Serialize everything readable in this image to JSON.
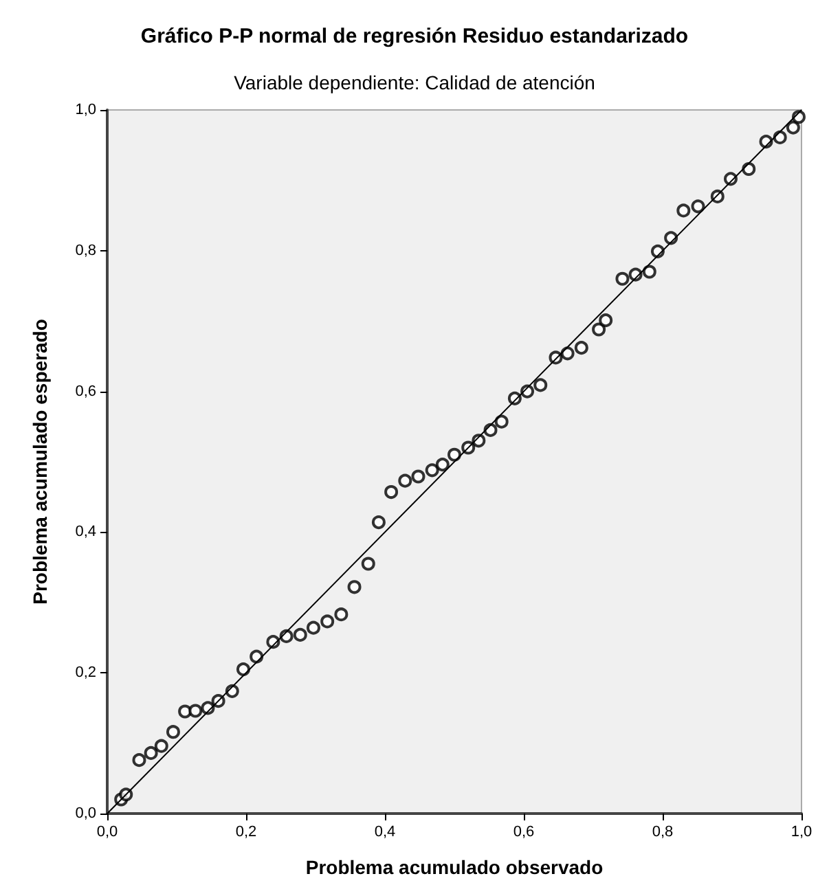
{
  "chart_data": {
    "type": "scatter",
    "title": "Gráfico P-P normal de regresión Residuo estandarizado",
    "subtitle": "Variable dependiente: Calidad de atención",
    "xlabel": "Problema acumulado observado",
    "ylabel": "Problema acumulado esperado",
    "xlim": [
      0,
      1
    ],
    "ylim": [
      0,
      1
    ],
    "xticks": [
      {
        "value": 0,
        "label": "0,0"
      },
      {
        "value": 0.2,
        "label": "0,2"
      },
      {
        "value": 0.4,
        "label": "0,4"
      },
      {
        "value": 0.6,
        "label": "0,6"
      },
      {
        "value": 0.8,
        "label": "0,8"
      },
      {
        "value": 1,
        "label": "1,0"
      }
    ],
    "yticks": [
      {
        "value": 0,
        "label": "0,0"
      },
      {
        "value": 0.2,
        "label": "0,2"
      },
      {
        "value": 0.4,
        "label": "0,4"
      },
      {
        "value": 0.6,
        "label": "0,6"
      },
      {
        "value": 0.8,
        "label": "0,8"
      },
      {
        "value": 1,
        "label": "1,0"
      }
    ],
    "grid": false,
    "marker": "circle",
    "series": [
      {
        "color": "#000000",
        "x": [
          0.02,
          0.027,
          0.046,
          0.063,
          0.078,
          0.095,
          0.112,
          0.127,
          0.145,
          0.16,
          0.18,
          0.196,
          0.215,
          0.239,
          0.258,
          0.278,
          0.297,
          0.317,
          0.337,
          0.356,
          0.376,
          0.391,
          0.409,
          0.429,
          0.448,
          0.468,
          0.483,
          0.5,
          0.52,
          0.535,
          0.552,
          0.568,
          0.587,
          0.605,
          0.624,
          0.646,
          0.663,
          0.683,
          0.708,
          0.718,
          0.742,
          0.761,
          0.781,
          0.793,
          0.812,
          0.83,
          0.851,
          0.879,
          0.898,
          0.924,
          0.949,
          0.969,
          0.988,
          0.996
        ],
        "values": [
          0.02,
          0.027,
          0.076,
          0.086,
          0.096,
          0.116,
          0.145,
          0.146,
          0.15,
          0.16,
          0.174,
          0.205,
          0.223,
          0.244,
          0.252,
          0.254,
          0.264,
          0.273,
          0.283,
          0.322,
          0.355,
          0.414,
          0.457,
          0.473,
          0.479,
          0.488,
          0.496,
          0.51,
          0.52,
          0.53,
          0.545,
          0.557,
          0.59,
          0.6,
          0.609,
          0.648,
          0.654,
          0.662,
          0.688,
          0.701,
          0.76,
          0.766,
          0.77,
          0.799,
          0.818,
          0.857,
          0.863,
          0.877,
          0.902,
          0.916,
          0.955,
          0.961,
          0.975,
          0.99
        ]
      },
      {
        "type": "line",
        "color": "#000000",
        "line_style": "solid",
        "marker": "none",
        "x": [
          0,
          1
        ],
        "values": [
          0,
          1
        ]
      }
    ]
  }
}
